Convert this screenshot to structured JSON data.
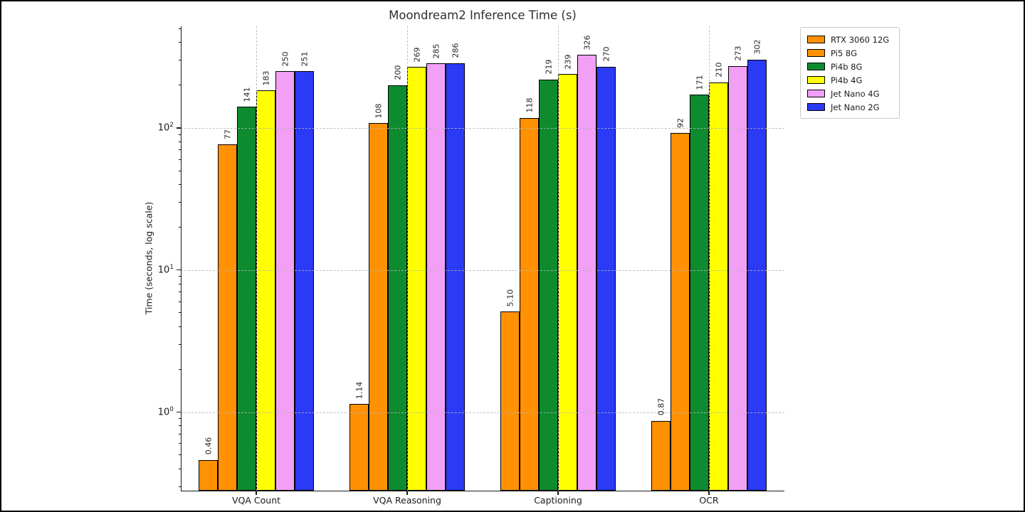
{
  "chart_data": {
    "type": "bar",
    "title": "Moondream2 Inference Time (s)",
    "xlabel": "",
    "ylabel": "Time (seconds, log scale)",
    "yscale": "log",
    "ylim": [
      0.28,
      519
    ],
    "yticks": [
      1,
      10,
      100
    ],
    "grid": true,
    "legend_position": "upper right outside axes",
    "categories": [
      "VQA Count",
      "VQA Reasoning",
      "Captioning",
      "OCR"
    ],
    "series": [
      {
        "name": "RTX 3060 12G",
        "color": "#FF9103",
        "values": [
          0.46,
          1.14,
          5.1,
          0.87
        ],
        "labels": [
          "0.46",
          "1.14",
          "5.10",
          "0.87"
        ]
      },
      {
        "name": "Pi5 8G",
        "color": "#FF9103",
        "values": [
          77,
          108,
          118,
          92
        ],
        "labels": [
          "77",
          "108",
          "118",
          "92"
        ]
      },
      {
        "name": "Pi4b 8G",
        "color": "#0E8B2F",
        "values": [
          141,
          200,
          219,
          171
        ],
        "labels": [
          "141",
          "200",
          "219",
          "171"
        ]
      },
      {
        "name": "Pi4b 4G",
        "color": "#FFFF00",
        "values": [
          183,
          269,
          239,
          210
        ],
        "labels": [
          "183",
          "269",
          "239",
          "210"
        ]
      },
      {
        "name": "Jet Nano 4G",
        "color": "#F2A0F5",
        "values": [
          250,
          285,
          326,
          273
        ],
        "labels": [
          "250",
          "285",
          "326",
          "273"
        ]
      },
      {
        "name": "Jet Nano 2G",
        "color": "#2A3AF5",
        "values": [
          251,
          286,
          270,
          302
        ],
        "labels": [
          "251",
          "286",
          "270",
          "302"
        ]
      }
    ],
    "colors": {
      "bar_edge": "#000000",
      "grid": "#b4b4b4",
      "spine": "#1a1a1a",
      "text": "#262626"
    }
  }
}
